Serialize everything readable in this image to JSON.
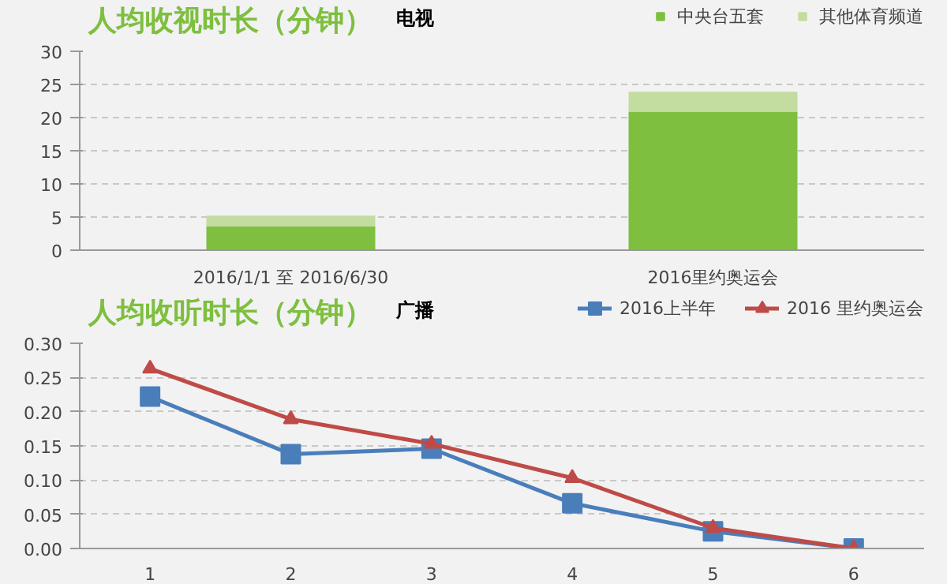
{
  "chart_data": [
    {
      "type": "bar",
      "title": "人均收视时长（分钟）",
      "subtitle": "电视",
      "stacked": true,
      "categories": [
        "2016/1/1 至 2016/6/30",
        "2016里约奥运会"
      ],
      "series": [
        {
          "name": "中央台五套",
          "color": "#7ebf3f",
          "values": [
            3.6,
            20.9
          ]
        },
        {
          "name": "其他体育频道",
          "color": "#c3dc9f",
          "values": [
            1.6,
            3.0
          ]
        }
      ],
      "ylim": [
        0,
        30
      ],
      "yticks": [
        0,
        5,
        10,
        15,
        20,
        25,
        30
      ],
      "grid": "y",
      "legend": "top right"
    },
    {
      "type": "line",
      "title": "人均收听时长（分钟）",
      "subtitle": "广播",
      "categories": [
        "1",
        "2",
        "3",
        "4",
        "5",
        "6"
      ],
      "series": [
        {
          "name": "2016上半年",
          "color": "#4a7ebb",
          "marker": "square",
          "values": [
            0.222,
            0.138,
            0.146,
            0.066,
            0.025,
            0.0
          ]
        },
        {
          "name": "2016 里约奥运会",
          "color": "#be4b48",
          "marker": "triangle",
          "values": [
            0.263,
            0.189,
            0.153,
            0.103,
            0.03,
            0.0
          ]
        }
      ],
      "ylim": [
        0,
        0.3
      ],
      "yticks": [
        {
          "value": 0,
          "label": "0.00"
        },
        {
          "value": 0.05,
          "label": "0.05"
        },
        {
          "value": 0.1,
          "label": "0.10"
        },
        {
          "value": 0.15,
          "label": "0.15"
        },
        {
          "value": 0.2,
          "label": "0.20"
        },
        {
          "value": 0.25,
          "label": "0.25"
        },
        {
          "value": 0.3,
          "label": "0.30"
        }
      ],
      "grid": "y",
      "legend": "top right"
    }
  ]
}
